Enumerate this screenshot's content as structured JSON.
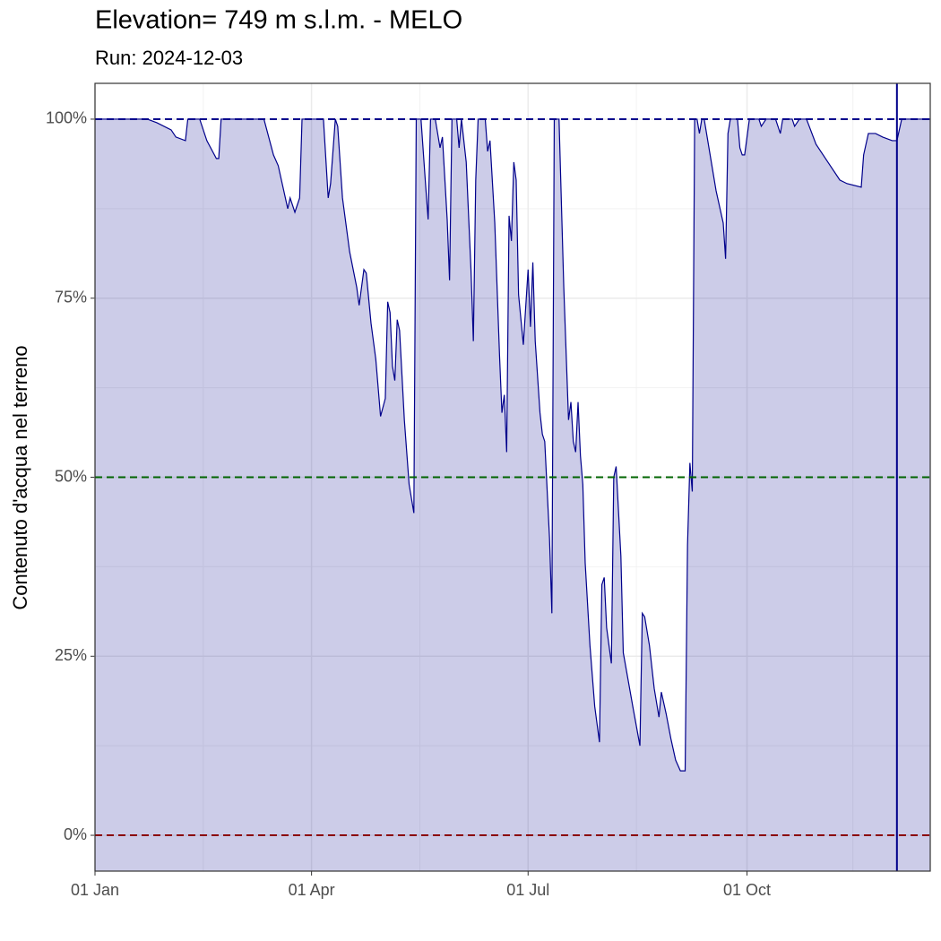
{
  "chart_data": {
    "type": "area",
    "title": "Elevation= 749 m s.l.m. - MELO",
    "subtitle": "Run: 2024-12-03",
    "y_label": "Contenuto d'acqua nel terreno",
    "x": [
      "01 Jan",
      "23 Jan",
      "27 Jan",
      "02 Feb",
      "04 Feb",
      "08 Feb",
      "09 Feb",
      "14 Feb",
      "17 Feb",
      "21 Feb",
      "22 Feb",
      "23 Feb",
      "03 Mar",
      "06 Mar",
      "12 Mar",
      "16 Mar",
      "18 Mar",
      "22 Mar",
      "23 Mar",
      "25 Mar",
      "27 Mar",
      "28 Mar",
      "06 Apr",
      "08 Apr",
      "09 Apr",
      "11 Apr",
      "12 Apr",
      "14 Apr",
      "17 Apr",
      "20 Apr",
      "21 Apr",
      "23 Apr",
      "24 Apr",
      "26 Apr",
      "28 Apr",
      "30 Apr",
      "02 May",
      "03 May",
      "04 May",
      "05 May",
      "06 May",
      "07 May",
      "08 May",
      "10 May",
      "12 May",
      "14 May",
      "15 May",
      "17 May",
      "19 May",
      "20 May",
      "21 May",
      "23 May",
      "25 May",
      "26 May",
      "28 May",
      "29 May",
      "30 May",
      "01 Jun",
      "02 Jun",
      "03 Jun",
      "05 Jun",
      "07 Jun",
      "08 Jun",
      "09 Jun",
      "10 Jun",
      "13 Jun",
      "14 Jun",
      "15 Jun",
      "17 Jun",
      "19 Jun",
      "20 Jun",
      "21 Jun",
      "22 Jun",
      "23 Jun",
      "24 Jun",
      "25 Jun",
      "26 Jun",
      "27 Jun",
      "29 Jun",
      "01 Jul",
      "02 Jul",
      "03 Jul",
      "04 Jul",
      "06 Jul",
      "07 Jul",
      "08 Jul",
      "10 Jul",
      "11 Jul",
      "12 Jul",
      "14 Jul",
      "16 Jul",
      "18 Jul",
      "19 Jul",
      "20 Jul",
      "21 Jul",
      "22 Jul",
      "23 Jul",
      "24 Jul",
      "25 Jul",
      "27 Jul",
      "29 Jul",
      "31 Jul",
      "01 Aug",
      "02 Aug",
      "03 Aug",
      "05 Aug",
      "06 Aug",
      "07 Aug",
      "09 Aug",
      "10 Aug",
      "14 Aug",
      "17 Aug",
      "18 Aug",
      "19 Aug",
      "21 Aug",
      "23 Aug",
      "25 Aug",
      "26 Aug",
      "28 Aug",
      "30 Aug",
      "01 Sep",
      "03 Sep",
      "05 Sep",
      "06 Sep",
      "07 Sep",
      "08 Sep",
      "09 Sep",
      "10 Sep",
      "11 Sep",
      "12 Sep",
      "13 Sep",
      "16 Sep",
      "18 Sep",
      "21 Sep",
      "22 Sep",
      "23 Sep",
      "24 Sep",
      "27 Sep",
      "28 Sep",
      "29 Sep",
      "30 Sep",
      "02 Oct",
      "06 Oct",
      "07 Oct",
      "09 Oct",
      "13 Oct",
      "15 Oct",
      "16 Oct",
      "20 Oct",
      "21 Oct",
      "23 Oct",
      "26 Oct",
      "30 Oct",
      "04 Nov",
      "09 Nov",
      "12 Nov",
      "18 Nov",
      "19 Nov",
      "21 Nov",
      "24 Nov",
      "27 Nov",
      "01 Dec",
      "03 Dec",
      "05 Dec",
      "17 Dec"
    ],
    "values": [
      100,
      100,
      99.5,
      98.5,
      97.5,
      97,
      100,
      100,
      97,
      94.5,
      94.5,
      100,
      100,
      100,
      100,
      95,
      93.5,
      87.5,
      89,
      87,
      89,
      100,
      100,
      89,
      91,
      100,
      99,
      89,
      81.5,
      76.5,
      74,
      79,
      78.5,
      71.5,
      66.5,
      58.5,
      61,
      74.5,
      73,
      65.5,
      63.5,
      72,
      70.5,
      58,
      49,
      45,
      100,
      100,
      90.5,
      86,
      100,
      100,
      96,
      97.5,
      86,
      77.5,
      100,
      100,
      96,
      100,
      94,
      79,
      69,
      91.5,
      100,
      100,
      95.5,
      97,
      85.5,
      67,
      59,
      61.5,
      53.5,
      86.5,
      83,
      94,
      91.5,
      75.5,
      68.5,
      79,
      71,
      80,
      69,
      59,
      56,
      55,
      41.5,
      31,
      100,
      100,
      76.5,
      58,
      60.5,
      55,
      53.5,
      60.5,
      53,
      49,
      38,
      26.5,
      18,
      13,
      35,
      36,
      29,
      24,
      50,
      51.5,
      39,
      25.5,
      18,
      12.5,
      31,
      30.5,
      26.5,
      20.5,
      16.5,
      20,
      17,
      13.5,
      10.5,
      9,
      9,
      40.5,
      52,
      48,
      100,
      100,
      98,
      100,
      100,
      94,
      90,
      85.5,
      80.5,
      98,
      100,
      100,
      96,
      95,
      95,
      100,
      100,
      99,
      100,
      100,
      98,
      100,
      100,
      99,
      100,
      100,
      96.5,
      94,
      91.5,
      91,
      90.5,
      95,
      98,
      98,
      97.5,
      97,
      97,
      100,
      100
    ],
    "color": "#00008b",
    "fill_opacity": 0.2,
    "xlim": [
      "01 Jan",
      "17 Dec"
    ],
    "xticks": [
      "01 Jan",
      "01 Apr",
      "01 Jul",
      "01 Oct"
    ],
    "ylim": [
      -5,
      105
    ],
    "yticks": [
      {
        "value": 0,
        "label": "0%"
      },
      {
        "value": 25,
        "label": "25%"
      },
      {
        "value": 50,
        "label": "50%"
      },
      {
        "value": 75,
        "label": "75%"
      },
      {
        "value": 100,
        "label": "100%"
      }
    ],
    "grid": true,
    "hlines": [
      {
        "value": 100,
        "color": "#00008b"
      },
      {
        "value": 50,
        "color": "#006400"
      },
      {
        "value": 0,
        "color": "#8b0000"
      }
    ],
    "vline": {
      "x": "03 Dec",
      "color": "#00008b"
    }
  }
}
